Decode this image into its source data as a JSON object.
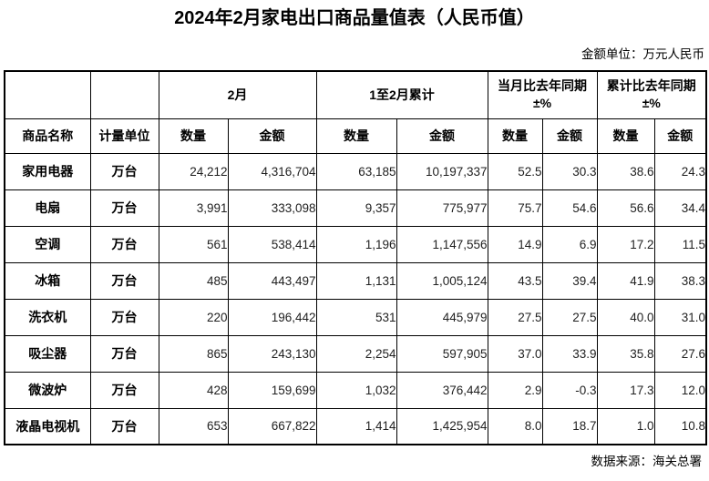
{
  "page": {
    "title": "2024年2月家电出口商品量值表（人民币值）",
    "unit_note": "金额单位：万元人民币",
    "source_note": "数据来源：海关总署"
  },
  "table": {
    "header": {
      "product": "商品名称",
      "unit": "计量单位",
      "qty": "数量",
      "amount": "金额",
      "groups": [
        {
          "label": "2月",
          "label2": ""
        },
        {
          "label": "1至2月累计",
          "label2": ""
        },
        {
          "label": "当月比去年同期",
          "label2": "±%"
        },
        {
          "label": "累计比去年同期",
          "label2": "±%"
        }
      ]
    },
    "rows": [
      {
        "name": "家用电器",
        "unit": "万台",
        "values": [
          "24,212",
          "4,316,704",
          "63,185",
          "10,197,337",
          "52.5",
          "30.3",
          "38.6",
          "24.3"
        ]
      },
      {
        "name": "电扇",
        "unit": "万台",
        "values": [
          "3,991",
          "333,098",
          "9,357",
          "775,977",
          "75.7",
          "54.6",
          "56.6",
          "34.4"
        ]
      },
      {
        "name": "空调",
        "unit": "万台",
        "values": [
          "561",
          "538,414",
          "1,196",
          "1,147,556",
          "14.9",
          "6.9",
          "17.2",
          "11.5"
        ]
      },
      {
        "name": "冰箱",
        "unit": "万台",
        "values": [
          "485",
          "443,497",
          "1,131",
          "1,005,124",
          "43.5",
          "39.4",
          "41.9",
          "38.3"
        ]
      },
      {
        "name": "洗衣机",
        "unit": "万台",
        "values": [
          "220",
          "196,442",
          "531",
          "445,979",
          "27.5",
          "27.5",
          "40.0",
          "31.0"
        ]
      },
      {
        "name": "吸尘器",
        "unit": "万台",
        "values": [
          "865",
          "243,130",
          "2,254",
          "597,905",
          "37.0",
          "33.9",
          "35.8",
          "27.6"
        ]
      },
      {
        "name": "微波炉",
        "unit": "万台",
        "values": [
          "428",
          "159,699",
          "1,032",
          "376,442",
          "2.9",
          "-0.3",
          "17.3",
          "12.0"
        ]
      },
      {
        "name": "液晶电视机",
        "unit": "万台",
        "values": [
          "653",
          "667,822",
          "1,414",
          "1,425,954",
          "8.0",
          "18.7",
          "1.0",
          "10.8"
        ]
      }
    ]
  },
  "chart_data": {
    "type": "table",
    "title": "2024年2月家电出口商品量值表（人民币值）",
    "unit_note": "金额单位：万元人民币",
    "source": "数据来源：海关总署",
    "column_groups": [
      "2月",
      "1至2月累计",
      "当月比去年同期±%",
      "累计比去年同期±%"
    ],
    "columns": [
      "商品名称",
      "计量单位",
      "2月数量",
      "2月金额",
      "1至2月累计数量",
      "1至2月累计金额",
      "当月比去年同期数量±%",
      "当月比去年同期金额±%",
      "累计比去年同期数量±%",
      "累计比去年同期金额±%"
    ],
    "rows": [
      [
        "家用电器",
        "万台",
        24212,
        4316704,
        63185,
        10197337,
        52.5,
        30.3,
        38.6,
        24.3
      ],
      [
        "电扇",
        "万台",
        3991,
        333098,
        9357,
        775977,
        75.7,
        54.6,
        56.6,
        34.4
      ],
      [
        "空调",
        "万台",
        561,
        538414,
        1196,
        1147556,
        14.9,
        6.9,
        17.2,
        11.5
      ],
      [
        "冰箱",
        "万台",
        485,
        443497,
        1131,
        1005124,
        43.5,
        39.4,
        41.9,
        38.3
      ],
      [
        "洗衣机",
        "万台",
        220,
        196442,
        531,
        445979,
        27.5,
        27.5,
        40.0,
        31.0
      ],
      [
        "吸尘器",
        "万台",
        865,
        243130,
        2254,
        597905,
        37.0,
        33.9,
        35.8,
        27.6
      ],
      [
        "微波炉",
        "万台",
        428,
        159699,
        1032,
        376442,
        2.9,
        -0.3,
        17.3,
        12.0
      ],
      [
        "液晶电视机",
        "万台",
        653,
        667822,
        1414,
        1425954,
        8.0,
        18.7,
        1.0,
        10.8
      ]
    ]
  }
}
